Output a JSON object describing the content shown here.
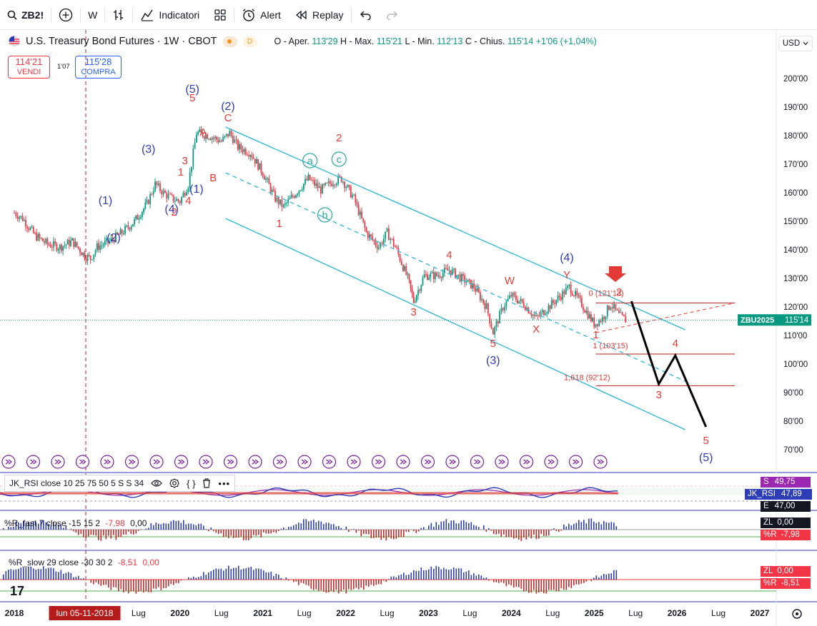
{
  "toolbar": {
    "symbol": "ZB2!",
    "interval": "W",
    "indicators_label": "Indicatori",
    "alert_label": "Alert",
    "replay_label": "Replay"
  },
  "header": {
    "title": "U.S. Treasury Bond Futures · 1W · CBOT",
    "badge": "D",
    "ohlc": {
      "open_label": "O - Aper.",
      "open": "113'29",
      "high_label": "H - Max.",
      "high": "115'21",
      "low_label": "L - Min.",
      "low": "112'13",
      "close_label": "C - Chius.",
      "close": "115'14",
      "change": "+1'06 (+1,04%)"
    },
    "sell_price": "114'21",
    "sell_label": "VENDI",
    "spread": "1'07",
    "buy_price": "115'28",
    "buy_label": "COMPRA",
    "currency": "USD"
  },
  "price_axis": [
    "200'00",
    "190'00",
    "180'00",
    "170'00",
    "160'00",
    "150'00",
    "140'00",
    "130'00",
    "120'00",
    "110'00",
    "100'00",
    "90'00",
    "80'00",
    "70'00"
  ],
  "last_price_label": {
    "symbol": "ZBU2025",
    "value": "115'14"
  },
  "time_axis": [
    "2018",
    "lun 05-11-2018",
    "Lug",
    "2020",
    "Lug",
    "2021",
    "Lug",
    "2022",
    "Lug",
    "2023",
    "Lug",
    "2024",
    "Lug",
    "2025",
    "Lug",
    "2026",
    "Lug",
    "2027"
  ],
  "chart_data": {
    "type": "candlestick",
    "title": "U.S. Treasury Bond Futures · 1W · CBOT",
    "ylim": [
      65,
      210
    ],
    "xlim": [
      2018.0,
      2027.3
    ],
    "close_series": [
      [
        2018.0,
        153
      ],
      [
        2018.1,
        151
      ],
      [
        2018.25,
        145
      ],
      [
        2018.4,
        142
      ],
      [
        2018.55,
        141
      ],
      [
        2018.7,
        143
      ],
      [
        2018.85,
        138
      ],
      [
        2018.92,
        137
      ],
      [
        2019.0,
        141
      ],
      [
        2019.15,
        143
      ],
      [
        2019.3,
        146
      ],
      [
        2019.45,
        150
      ],
      [
        2019.6,
        156
      ],
      [
        2019.7,
        163
      ],
      [
        2019.8,
        160
      ],
      [
        2019.9,
        158
      ],
      [
        2020.0,
        157
      ],
      [
        2020.1,
        163
      ],
      [
        2020.2,
        181
      ],
      [
        2020.35,
        180
      ],
      [
        2020.5,
        178
      ],
      [
        2020.6,
        181
      ],
      [
        2020.7,
        176
      ],
      [
        2020.85,
        174
      ],
      [
        2021.0,
        167
      ],
      [
        2021.15,
        158
      ],
      [
        2021.25,
        155
      ],
      [
        2021.4,
        160
      ],
      [
        2021.55,
        165
      ],
      [
        2021.7,
        161
      ],
      [
        2021.85,
        164
      ],
      [
        2021.95,
        165
      ],
      [
        2022.1,
        158
      ],
      [
        2022.25,
        146
      ],
      [
        2022.4,
        141
      ],
      [
        2022.5,
        146
      ],
      [
        2022.6,
        141
      ],
      [
        2022.75,
        130
      ],
      [
        2022.82,
        122
      ],
      [
        2022.95,
        131
      ],
      [
        2023.1,
        131
      ],
      [
        2023.25,
        133
      ],
      [
        2023.4,
        130
      ],
      [
        2023.55,
        127
      ],
      [
        2023.7,
        120
      ],
      [
        2023.78,
        111
      ],
      [
        2023.9,
        120
      ],
      [
        2024.0,
        124
      ],
      [
        2024.15,
        121
      ],
      [
        2024.3,
        116
      ],
      [
        2024.45,
        120
      ],
      [
        2024.6,
        124
      ],
      [
        2024.7,
        127
      ],
      [
        2024.85,
        121
      ],
      [
        2025.0,
        114
      ],
      [
        2025.1,
        116
      ],
      [
        2025.2,
        121
      ],
      [
        2025.3,
        117
      ],
      [
        2025.4,
        115
      ]
    ],
    "projection": [
      [
        2025.45,
        122
      ],
      [
        2025.78,
        93
      ],
      [
        2025.98,
        103
      ],
      [
        2026.35,
        78
      ]
    ],
    "fib_levels": [
      {
        "label": "0 (121'13)",
        "value": 121.4
      },
      {
        "label": "1 (103'15)",
        "value": 103.5
      },
      {
        "label": "1,618 (92'12)",
        "value": 92.4
      }
    ],
    "wave_labels": [
      {
        "text": "(5)",
        "t": 2020.15,
        "p": 195,
        "color": "#2d3db8"
      },
      {
        "text": "5",
        "t": 2020.15,
        "p": 192,
        "color": "#e53935"
      },
      {
        "text": "A",
        "t": 2020.28,
        "p": 180,
        "color": "#e53935"
      },
      {
        "text": "(2)",
        "t": 2020.58,
        "p": 189,
        "color": "#2d3db8"
      },
      {
        "text": "C",
        "t": 2020.58,
        "p": 185,
        "color": "#e53935"
      },
      {
        "text": "(3)",
        "t": 2019.62,
        "p": 174,
        "color": "#2d3db8"
      },
      {
        "text": "3",
        "t": 2020.06,
        "p": 170,
        "color": "#e53935"
      },
      {
        "text": "1",
        "t": 2020.01,
        "p": 166,
        "color": "#e53935"
      },
      {
        "text": "B",
        "t": 2020.4,
        "p": 164,
        "color": "#e53935"
      },
      {
        "text": "(1)",
        "t": 2020.2,
        "p": 160,
        "color": "#2d3db8"
      },
      {
        "text": "4",
        "t": 2020.1,
        "p": 156,
        "color": "#e53935"
      },
      {
        "text": "(4)",
        "t": 2019.9,
        "p": 153,
        "color": "#2d3db8"
      },
      {
        "text": "2",
        "t": 2019.93,
        "p": 152,
        "color": "#e53935"
      },
      {
        "text": "(1)",
        "t": 2019.1,
        "p": 156,
        "color": "#2d3db8"
      },
      {
        "text": "(2)",
        "t": 2019.2,
        "p": 143,
        "color": "#2d3db8"
      },
      {
        "text": "1",
        "t": 2021.2,
        "p": 148,
        "color": "#e53935"
      },
      {
        "text": "2",
        "t": 2021.92,
        "p": 178,
        "color": "#e53935"
      },
      {
        "text": "3",
        "t": 2022.82,
        "p": 117,
        "color": "#e53935"
      },
      {
        "text": "4",
        "t": 2023.25,
        "p": 137,
        "color": "#e53935"
      },
      {
        "text": "5",
        "t": 2023.78,
        "p": 106,
        "color": "#e53935"
      },
      {
        "text": "(3)",
        "t": 2023.78,
        "p": 100,
        "color": "#2d3db8"
      },
      {
        "text": "W",
        "t": 2023.98,
        "p": 128,
        "color": "#e53935"
      },
      {
        "text": "X",
        "t": 2024.3,
        "p": 111,
        "color": "#e53935"
      },
      {
        "text": "Y",
        "t": 2024.67,
        "p": 130,
        "color": "#e53935"
      },
      {
        "text": "(4)",
        "t": 2024.67,
        "p": 136,
        "color": "#2d3db8"
      },
      {
        "text": "1",
        "t": 2025.02,
        "p": 109,
        "color": "#e53935"
      },
      {
        "text": "2",
        "t": 2025.3,
        "p": 124,
        "color": "#e53935"
      },
      {
        "text": "3",
        "t": 2025.78,
        "p": 88,
        "color": "#e53935"
      },
      {
        "text": "4",
        "t": 2025.98,
        "p": 106,
        "color": "#e53935"
      },
      {
        "text": "5",
        "t": 2026.35,
        "p": 72,
        "color": "#e53935"
      },
      {
        "text": "(5)",
        "t": 2026.35,
        "p": 66,
        "color": "#2d3db8"
      }
    ],
    "circle_labels": [
      {
        "text": "a",
        "t": 2021.57,
        "p": 170
      },
      {
        "text": "c",
        "t": 2021.92,
        "p": 170.5
      },
      {
        "text": "b",
        "t": 2021.75,
        "p": 151
      }
    ]
  },
  "panes": {
    "rsi": {
      "label": "JK_RSI close 10 25 75 50 5 S S 34",
      "badges": [
        {
          "text": "S",
          "value": "49,75",
          "color": "#9c27b0"
        },
        {
          "text": "",
          "value": "47,89",
          "name": "JK_RSI",
          "color": "#2d3db8"
        },
        {
          "text": "E",
          "value": "47,00",
          "color": "#131722"
        }
      ]
    },
    "r_fast": {
      "label": "%R_fast 7 close -15 15 2",
      "value_a": "-7,98",
      "value_b": "0,00",
      "zl_label": "ZL",
      "zl_value": "0,00",
      "r_label": "%R",
      "r_value": "-7,98"
    },
    "r_slow": {
      "label": "%R_slow 29 close -30 30 2",
      "value_a": "-8,51",
      "value_b": "0,00",
      "zl_label": "ZL",
      "zl_value": "0,00",
      "r_label": "%R",
      "r_value": "-8,51"
    }
  },
  "colors": {
    "up": "#089981",
    "down": "#f23645",
    "channel": "#29b6d6",
    "wave_blue": "#2d3db8",
    "wave_red": "#e53935"
  }
}
